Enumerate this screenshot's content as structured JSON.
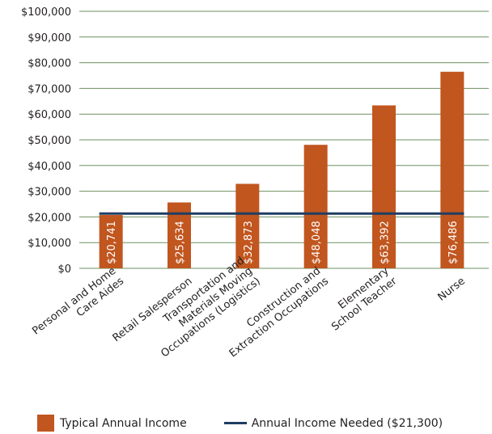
{
  "chart_data": {
    "type": "bar",
    "categories": [
      [
        "Personal and Home",
        "Care Aides"
      ],
      [
        "Retail Salesperson"
      ],
      [
        "Transportation and",
        "Materials Moving",
        "Occupations (Logistics)"
      ],
      [
        "Construction and",
        "Extraction Occupations"
      ],
      [
        "Elementary",
        "School Teacher"
      ],
      [
        "Nurse"
      ]
    ],
    "series": [
      {
        "name": "Typical Annual Income",
        "values": [
          20741,
          25634,
          32873,
          48048,
          63392,
          76486
        ],
        "labels": [
          "$20,741",
          "$25,634",
          "$32,873",
          "$48,048",
          "$63,392",
          "$76,486"
        ]
      }
    ],
    "reference_line": {
      "name": "Annual Income Needed ($21,300)",
      "value": 21300
    },
    "ylim": [
      0,
      100000
    ],
    "yticks": [
      0,
      10000,
      20000,
      30000,
      40000,
      50000,
      60000,
      70000,
      80000,
      90000,
      100000
    ],
    "ytick_labels": [
      "$0",
      "$10,000",
      "$20,000",
      "$30,000",
      "$40,000",
      "$50,000",
      "$60,000",
      "$70,000",
      "$80,000",
      "$90,000",
      "$100,000"
    ],
    "grid": true,
    "legend_position": "bottom",
    "colors": {
      "bar": "#c1561f",
      "reference_line": "#1f3d63",
      "grid": "#6e8f60",
      "text": "#231f20"
    }
  },
  "legend": {
    "bar_label": "Typical Annual Income",
    "line_label": "Annual Income Needed ($21,300)"
  }
}
